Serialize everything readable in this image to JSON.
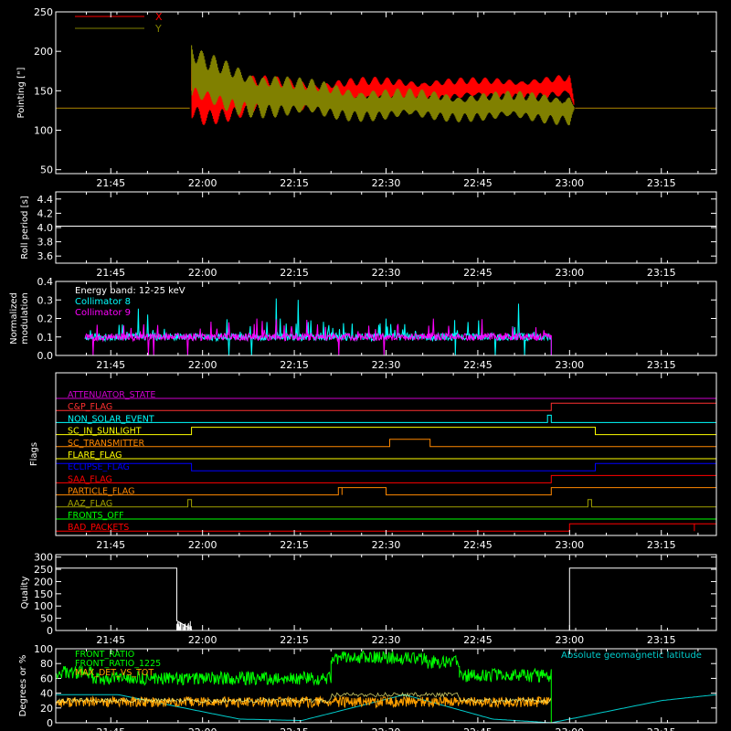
{
  "chart_data": [
    {
      "id": "pointing",
      "type": "line",
      "ylabel": "Pointing [\"]",
      "ylim": [
        45,
        250
      ],
      "yticks": [
        50,
        100,
        150,
        200,
        250
      ],
      "xlim_hours": [
        21.6,
        23.4
      ],
      "xticks": [
        "21:45",
        "22:00",
        "22:15",
        "22:30",
        "22:45",
        "23:00",
        "23:15"
      ],
      "legend": "top-left",
      "series": [
        {
          "name": "X",
          "color": "#ff0000",
          "baseline": 128,
          "x_hours": [
            21.6,
            21.965,
            21.97,
            22.0,
            22.25,
            22.5,
            22.75,
            23.0,
            23.015,
            23.4
          ],
          "center": [
            128,
            128,
            150,
            140,
            145,
            150,
            152,
            155,
            128,
            128
          ],
          "amplitude": [
            0,
            0,
            40,
            35,
            22,
            18,
            15,
            16,
            0,
            0
          ]
        },
        {
          "name": "Y",
          "color": "#808000",
          "baseline": 128,
          "x_hours": [
            21.6,
            21.965,
            21.97,
            22.0,
            22.25,
            22.5,
            22.75,
            23.0,
            23.015,
            23.4
          ],
          "center": [
            128,
            128,
            170,
            160,
            140,
            132,
            130,
            128,
            128,
            128
          ],
          "amplitude": [
            0,
            0,
            45,
            40,
            28,
            22,
            20,
            22,
            0,
            0
          ]
        }
      ]
    },
    {
      "id": "roll",
      "type": "line",
      "ylabel": "Roll period [s]",
      "ylim": [
        3.5,
        4.5
      ],
      "yticks": [
        3.6,
        3.8,
        4.0,
        4.2,
        4.4
      ],
      "ytick_labels": [
        "3.6",
        "3.8",
        "4.0",
        "4.2",
        "4.4"
      ],
      "xticks": [
        "21:45",
        "22:00",
        "22:15",
        "22:30",
        "22:45",
        "23:00",
        "23:15"
      ],
      "series": [
        {
          "name": "",
          "color": "#ffffff",
          "x_hours": [
            21.6,
            23.4
          ],
          "values": [
            4.02,
            4.02
          ]
        }
      ]
    },
    {
      "id": "modulation",
      "type": "line",
      "ylabel": "Normalized modulation",
      "ylabel_lines": [
        "Normalized",
        "modulation"
      ],
      "ylim": [
        0,
        0.4
      ],
      "yticks": [
        0.0,
        0.1,
        0.2,
        0.3,
        0.4
      ],
      "ytick_labels": [
        "0.0",
        "0.1",
        "0.2",
        "0.3",
        "0.4"
      ],
      "xticks": [
        "21:45",
        "22:00",
        "22:15",
        "22:30",
        "22:45",
        "23:00",
        "23:15"
      ],
      "annotations": [
        "Energy band: 12-25 keV"
      ],
      "series": [
        {
          "name": "Collimator 8",
          "color": "#00ffff",
          "data_end_hour": 22.95,
          "typical": 0.1
        },
        {
          "name": "Collimator 9",
          "color": "#ff00ff",
          "data_end_hour": 22.95,
          "typical": 0.1
        }
      ]
    },
    {
      "id": "flags",
      "type": "line",
      "ylabel": "Flags",
      "xticks": [
        "21:45",
        "22:00",
        "22:15",
        "22:30",
        "22:45",
        "23:00",
        "23:15"
      ],
      "flags": [
        {
          "name": "ATTENUATOR_STATE",
          "color": "#cc00cc",
          "on": []
        },
        {
          "name": "C&P_FLAG",
          "color": "#ff3030",
          "on": [
            [
              22.95,
              23.4
            ]
          ]
        },
        {
          "name": "NON_SOLAR_EVENT",
          "color": "#00ffff",
          "on": [
            [
              22.94,
              22.95
            ]
          ]
        },
        {
          "name": "SC_IN_SUNLIGHT",
          "color": "#ffff00",
          "on": [
            [
              21.97,
              23.07
            ]
          ]
        },
        {
          "name": "SC_TRANSMITTER",
          "color": "#ff8800",
          "on": [
            [
              22.51,
              22.62
            ]
          ]
        },
        {
          "name": "FLARE_FLAG",
          "color": "#ffff00",
          "on": []
        },
        {
          "name": "ECLIPSE_FLAG",
          "color": "#0000ff",
          "on": [
            [
              21.6,
              21.97
            ],
            [
              23.07,
              23.4
            ]
          ]
        },
        {
          "name": "SAA_FLAG",
          "color": "#ff0000",
          "on": [
            [
              22.95,
              23.4
            ]
          ]
        },
        {
          "name": "PARTICLE_FLAG",
          "color": "#ff8800",
          "on": [
            [
              22.37,
              22.38
            ],
            [
              22.38,
              22.5
            ],
            [
              22.95,
              23.4
            ]
          ]
        },
        {
          "name": "AAZ_FLAG",
          "color": "#a0a000",
          "on": [
            [
              21.96,
              21.97
            ],
            [
              23.05,
              23.06
            ]
          ]
        },
        {
          "name": "FRONTS_OFF",
          "color": "#00ff00",
          "on": []
        },
        {
          "name": "BAD_PACKETS",
          "color": "#ff0000",
          "on": [
            [
              23.0,
              23.34
            ],
            [
              23.34,
              23.4
            ]
          ]
        }
      ]
    },
    {
      "id": "quality",
      "type": "line",
      "ylabel": "Quality",
      "ylim": [
        0,
        310
      ],
      "yticks": [
        0,
        50,
        100,
        150,
        200,
        250,
        300
      ],
      "xticks": [
        "21:45",
        "22:00",
        "22:15",
        "22:30",
        "22:45",
        "23:00",
        "23:15"
      ],
      "series": [
        {
          "name": "",
          "color": "#ffffff",
          "x_hours": [
            21.6,
            21.93,
            21.93,
            21.97,
            21.97,
            23.0,
            23.0,
            23.4
          ],
          "values": [
            255,
            255,
            40,
            5,
            0,
            0,
            255,
            255
          ]
        }
      ]
    },
    {
      "id": "geo",
      "type": "line",
      "ylabel": "Degrees or %",
      "ylim": [
        0,
        100
      ],
      "yticks": [
        0,
        20,
        40,
        60,
        80,
        100
      ],
      "xticks": [
        "21:45",
        "22:00",
        "22:15",
        "22:30",
        "22:45",
        "23:00",
        "23:15"
      ],
      "legend": "top-left",
      "series": [
        {
          "name": "FRONT_RATIO",
          "color": "#00ff00",
          "segments": [
            [
              21.6,
              21.7,
              68
            ],
            [
              21.7,
              22.35,
              60
            ],
            [
              22.35,
              22.61,
              88
            ],
            [
              22.61,
              22.7,
              82
            ],
            [
              22.7,
              22.95,
              64
            ]
          ]
        },
        {
          "name": "FRONT_RATIO_1225",
          "color": "#00ff00"
        },
        {
          "name": "MAX_DET_VS_TOT",
          "color": "#ffa000",
          "typical": 28,
          "data_end_hour": 22.95
        },
        {
          "name": "Absolute geomagnetic latitude",
          "color": "#00cccc",
          "x_hours": [
            21.6,
            21.77,
            22.1,
            22.27,
            22.55,
            22.79,
            22.95,
            23.25,
            23.4
          ],
          "values": [
            38,
            38,
            5,
            3,
            38,
            5,
            0,
            30,
            38
          ]
        }
      ]
    }
  ]
}
